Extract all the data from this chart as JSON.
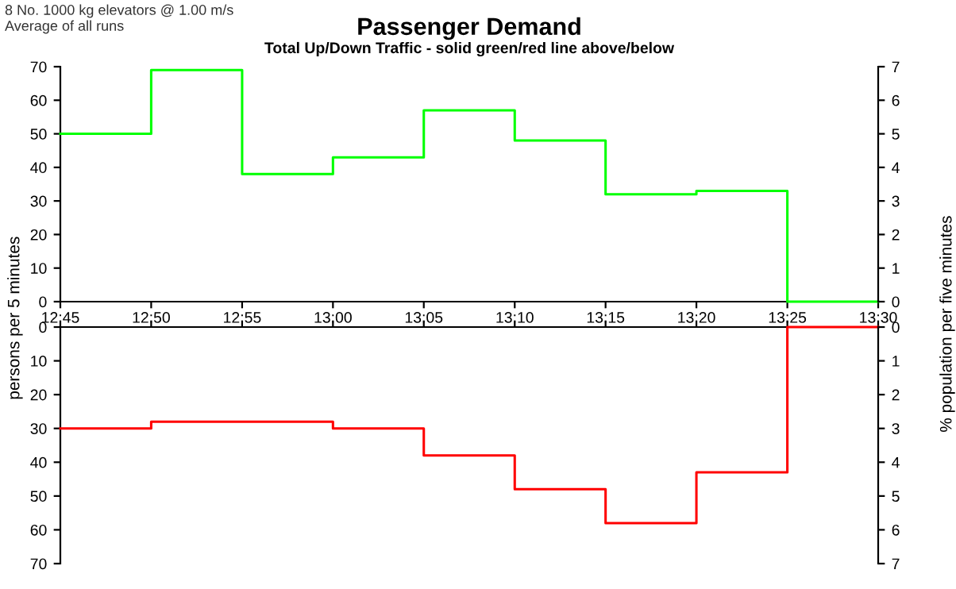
{
  "chart_data": [
    {
      "type": "step",
      "title": "Passenger Demand",
      "subtitle": "Total Up/Down Traffic - solid green/red line above/below",
      "annotations": [
        "8 No. 1000 kg elevators @ 1.00 m/s",
        "Average of all runs"
      ],
      "ylabel": "persons per 5 minutes",
      "y2label": "% population per five minutes",
      "x": [
        12.75,
        12.8333,
        12.9167,
        13.0,
        13.0833,
        13.1667,
        13.25,
        13.3333,
        13.4167,
        13.5
      ],
      "series": [
        {
          "color": "#00ff00",
          "values": [
            50,
            69,
            38,
            43,
            57,
            48,
            32,
            33,
            0,
            0
          ]
        }
      ],
      "xlim": [
        12.75,
        13.5
      ],
      "xticks": [
        {
          "value": 12.75,
          "label": "12:45"
        },
        {
          "value": 12.8333,
          "label": "12:50"
        },
        {
          "value": 12.9167,
          "label": "12:55"
        },
        {
          "value": 13.0,
          "label": "13:00"
        },
        {
          "value": 13.0833,
          "label": "13:05"
        },
        {
          "value": 13.1667,
          "label": "13:10"
        },
        {
          "value": 13.25,
          "label": "13:15"
        },
        {
          "value": 13.3333,
          "label": "13:20"
        },
        {
          "value": 13.4167,
          "label": "13:25"
        },
        {
          "value": 13.5,
          "label": "13:30"
        }
      ],
      "ylim": [
        0,
        70
      ],
      "yticks": [
        0,
        10,
        20,
        30,
        40,
        50,
        60,
        70
      ],
      "y2lim": [
        0,
        7
      ],
      "y2ticks": [
        0,
        1,
        2,
        3,
        4,
        5,
        6,
        7
      ]
    },
    {
      "type": "step",
      "x": [
        12.75,
        12.8333,
        12.9167,
        13.0,
        13.0833,
        13.1667,
        13.25,
        13.3333,
        13.4167,
        13.5
      ],
      "series": [
        {
          "color": "#ff0000",
          "values": [
            30,
            28,
            28,
            30,
            38,
            48,
            58,
            43,
            0,
            0
          ]
        }
      ],
      "xlim": [
        12.75,
        13.5
      ],
      "xticks": [
        {
          "value": 12.75,
          "label": null
        },
        {
          "value": 12.8333,
          "label": null
        },
        {
          "value": 12.9167,
          "label": null
        },
        {
          "value": 13.0,
          "label": null
        },
        {
          "value": 13.0833,
          "label": null
        },
        {
          "value": 13.1667,
          "label": null
        },
        {
          "value": 13.25,
          "label": null
        },
        {
          "value": 13.3333,
          "label": null
        },
        {
          "value": 13.4167,
          "label": null
        },
        {
          "value": 13.5,
          "label": null
        }
      ],
      "ylim": [
        70,
        0
      ],
      "yticks": [
        0,
        10,
        20,
        30,
        40,
        50,
        60,
        70
      ],
      "y2lim": [
        7,
        0
      ],
      "y2ticks": [
        0,
        1,
        2,
        3,
        4,
        5,
        6,
        7
      ],
      "tick_labels": "y"
    }
  ]
}
